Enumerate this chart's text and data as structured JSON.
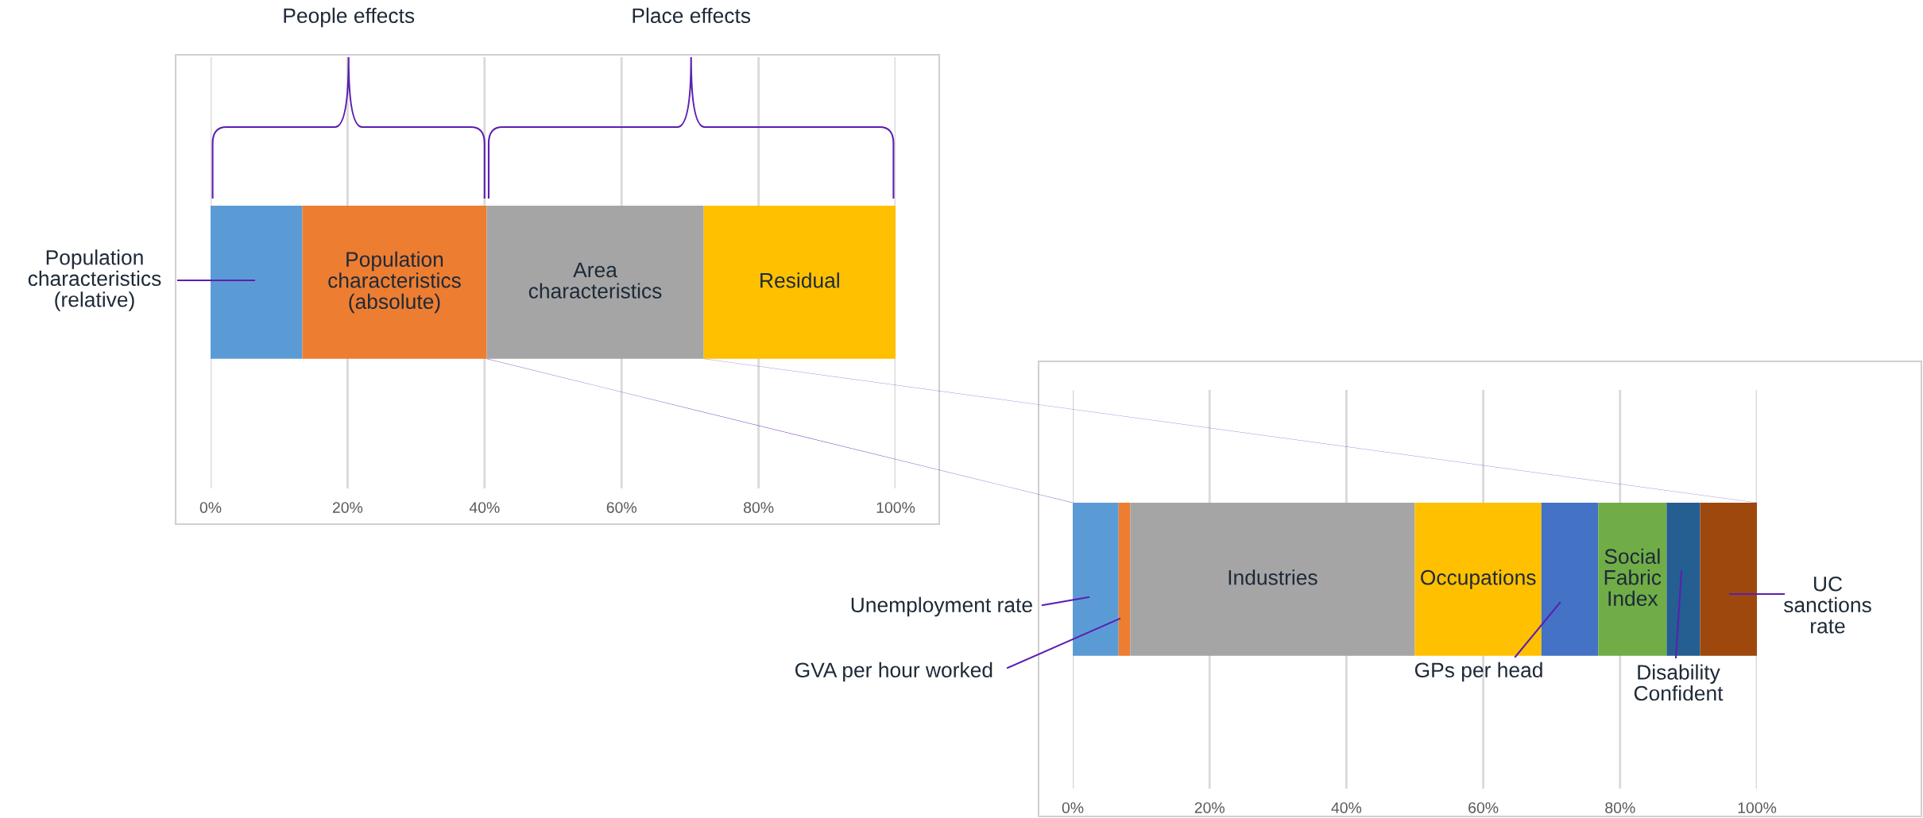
{
  "chart_data": [
    {
      "type": "bar",
      "orientation": "horizontal",
      "stacked": true,
      "categories": [
        null
      ],
      "xlim": [
        0,
        100
      ],
      "xticks": [
        {
          "value": 0,
          "label": "0%"
        },
        {
          "value": 20,
          "label": "20%"
        },
        {
          "value": 40,
          "label": "40%"
        },
        {
          "value": 60,
          "label": "60%"
        },
        {
          "value": 80,
          "label": "80%"
        },
        {
          "value": 100,
          "label": "100%"
        }
      ],
      "grid": "x",
      "tick_labels": "x",
      "series": [
        {
          "name": "Population\ncharacteristics\n(relative)",
          "color": "#5b9bd5",
          "values": [
            13.4
          ]
        },
        {
          "name": "Population\ncharacteristics\n(absolute)",
          "color": "#ed7d31",
          "values": [
            26.9
          ]
        },
        {
          "name": "Area\ncharacteristics",
          "color": "#a5a5a5",
          "values": [
            31.7
          ]
        },
        {
          "name": "Residual",
          "color": "#ffc000",
          "values": [
            28.0
          ]
        }
      ],
      "annotations": [
        "People effects",
        "Place effects"
      ]
    },
    {
      "type": "bar",
      "orientation": "horizontal",
      "stacked": true,
      "categories": [
        null
      ],
      "xlim": [
        0,
        100
      ],
      "xticks": [
        {
          "value": 0,
          "label": "0%"
        },
        {
          "value": 20,
          "label": "20%"
        },
        {
          "value": 40,
          "label": "40%"
        },
        {
          "value": 60,
          "label": "60%"
        },
        {
          "value": 80,
          "label": "80%"
        },
        {
          "value": 100,
          "label": "100%"
        }
      ],
      "grid": "x",
      "tick_labels": "x",
      "series": [
        {
          "name": "Unemployment rate",
          "color": "#5b9bd5",
          "values": [
            6.7
          ]
        },
        {
          "name": "GVA per hour worked",
          "color": "#ed7d31",
          "values": [
            1.7
          ]
        },
        {
          "name": "Industries",
          "color": "#a5a5a5",
          "values": [
            41.6
          ]
        },
        {
          "name": "Occupations",
          "color": "#ffc000",
          "values": [
            18.5
          ]
        },
        {
          "name": "GPs per head",
          "color": "#4472c4",
          "values": [
            8.3
          ]
        },
        {
          "name": "Social\nFabric\nIndex",
          "color": "#70ad47",
          "values": [
            10.0
          ]
        },
        {
          "name": "Disability\nConfident",
          "color": "#255e91",
          "values": [
            4.9
          ]
        },
        {
          "name": "UC\nsanctions\nrate",
          "color": "#9e480e",
          "values": [
            8.3
          ]
        }
      ]
    }
  ]
}
